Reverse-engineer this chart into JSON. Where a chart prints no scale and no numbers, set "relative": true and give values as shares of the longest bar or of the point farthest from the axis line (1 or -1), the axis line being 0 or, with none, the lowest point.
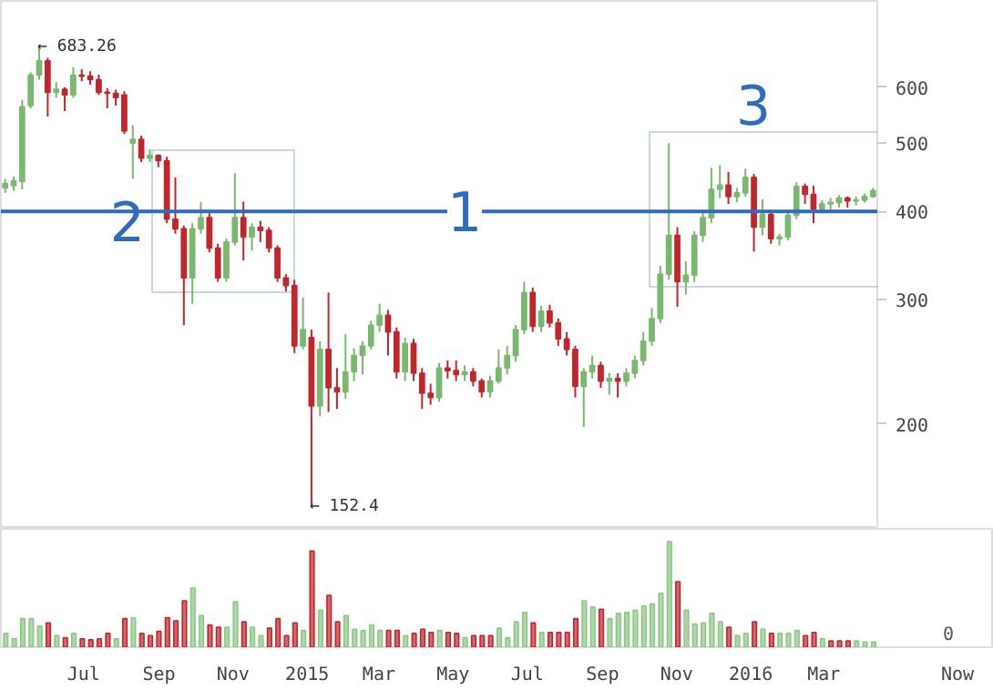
{
  "chart_data": [
    {
      "type": "candlestick",
      "log": "y",
      "tick_labels": "y",
      "categories": [
        null,
        null,
        null,
        null,
        null,
        null,
        null,
        null,
        null,
        null,
        null,
        null,
        null,
        null,
        null,
        null,
        null,
        null,
        null,
        null,
        null,
        null,
        null,
        null,
        null,
        null,
        null,
        null,
        null,
        null,
        null,
        null,
        null,
        null,
        null,
        null,
        null,
        null,
        null,
        null,
        null,
        null,
        null,
        null,
        null,
        null,
        null,
        null,
        null,
        null,
        null,
        null,
        null,
        null,
        null,
        null,
        null,
        null,
        null,
        null,
        null,
        null,
        null,
        null,
        null,
        null,
        null,
        null,
        null,
        null,
        null,
        null,
        null,
        null,
        null,
        null,
        null,
        null,
        null,
        null,
        null,
        null,
        null,
        null,
        null,
        null,
        null,
        null,
        null,
        null,
        null,
        null,
        null,
        null,
        null,
        null,
        null,
        null,
        null,
        null,
        null,
        null,
        null
      ],
      "colors": [
        "#79b86f",
        "#79b86f",
        "#79b86f",
        "#79b86f",
        "#79b86f",
        "#c3252c",
        "#79b86f",
        "#c3252c",
        "#79b86f",
        "#c3252c",
        "#c3252c",
        "#c3252c",
        "#c3252c",
        "#c3252c",
        "#c3252c",
        "#79b86f",
        "#c3252c",
        "#79b86f",
        "#c3252c",
        "#c3252c",
        "#c3252c",
        "#c3252c",
        "#79b86f",
        "#79b86f",
        "#c3252c",
        "#c3252c",
        "#79b86f",
        "#79b86f",
        "#c3252c",
        "#79b86f",
        "#c3252c",
        "#c3252c",
        "#c3252c",
        "#c3252c",
        "#c3252c",
        "#79b86f",
        "#c3252c",
        "#79b86f",
        "#c3252c",
        "#c3252c",
        "#79b86f",
        "#79b86f",
        "#79b86f",
        "#79b86f",
        "#79b86f",
        "#c3252c",
        "#c3252c",
        "#79b86f",
        "#c3252c",
        "#c3252c",
        "#c3252c",
        "#79b86f",
        "#c3252c",
        "#c3252c",
        "#79b86f",
        "#c3252c",
        "#c3252c",
        "#79b86f",
        "#79b86f",
        "#79b86f",
        "#79b86f",
        "#79b86f",
        "#c3252c",
        "#79b86f",
        "#c3252c",
        "#c3252c",
        "#c3252c",
        "#c3252c",
        "#79b86f",
        "#79b86f",
        "#c3252c",
        "#79b86f",
        "#c3252c",
        "#79b86f",
        "#79b86f",
        "#79b86f",
        "#79b86f",
        "#79b86f",
        "#79b86f",
        "#c3252c",
        "#79b86f",
        "#79b86f",
        "#79b86f",
        "#79b86f",
        "#79b86f",
        "#c3252c",
        "#79b86f",
        "#79b86f",
        "#c3252c",
        "#79b86f",
        "#c3252c",
        "#79b86f",
        "#79b86f",
        "#79b86f",
        "#c3252c",
        "#c3252c",
        "#79b86f",
        "#79b86f",
        "#79b86f",
        "#c3252c",
        "#79b86f",
        "#79b86f",
        "#79b86f"
      ],
      "ohlc": [
        [
          432,
          445,
          425,
          438
        ],
        [
          435,
          448,
          428,
          442
        ],
        [
          441,
          575,
          430,
          563
        ],
        [
          565,
          630,
          560,
          624
        ],
        [
          624,
          683.26,
          615,
          654
        ],
        [
          654,
          660,
          545,
          590
        ],
        [
          590,
          610,
          580,
          596
        ],
        [
          596,
          600,
          555,
          585
        ],
        [
          585,
          640,
          580,
          624
        ],
        [
          624,
          636,
          612,
          622
        ],
        [
          622,
          632,
          605,
          615
        ],
        [
          615,
          625,
          585,
          590
        ],
        [
          590,
          598,
          560,
          588
        ],
        [
          588,
          595,
          565,
          580
        ],
        [
          585,
          592,
          515,
          520
        ],
        [
          500,
          530,
          445,
          506
        ],
        [
          506,
          512,
          470,
          476
        ],
        [
          476,
          490,
          470,
          480
        ],
        [
          480,
          482,
          462,
          472
        ],
        [
          472,
          478,
          385,
          390
        ],
        [
          390,
          447,
          372,
          378
        ],
        [
          378,
          382,
          276,
          322
        ],
        [
          322,
          385,
          296,
          378
        ],
        [
          378,
          413,
          372,
          392
        ],
        [
          392,
          398,
          350,
          355
        ],
        [
          355,
          360,
          318,
          322
        ],
        [
          322,
          366,
          318,
          362
        ],
        [
          362,
          453,
          358,
          392
        ],
        [
          392,
          413,
          341,
          368
        ],
        [
          368,
          385,
          352,
          380
        ],
        [
          380,
          388,
          362,
          376
        ],
        [
          376,
          380,
          350,
          355
        ],
        [
          355,
          358,
          318,
          322
        ],
        [
          322,
          326,
          308,
          314
        ],
        [
          314,
          320,
          252,
          258
        ],
        [
          258,
          302,
          255,
          272
        ],
        [
          265,
          272,
          152.4,
          212
        ],
        [
          212,
          262,
          205,
          255
        ],
        [
          255,
          307,
          208,
          225
        ],
        [
          225,
          240,
          210,
          222
        ],
        [
          222,
          268,
          217,
          237
        ],
        [
          237,
          256,
          230,
          250
        ],
        [
          250,
          262,
          235,
          258
        ],
        [
          258,
          280,
          255,
          276
        ],
        [
          276,
          296,
          270,
          285
        ],
        [
          285,
          290,
          250,
          270
        ],
        [
          270,
          274,
          232,
          237
        ],
        [
          237,
          265,
          230,
          260
        ],
        [
          260,
          264,
          230,
          236
        ],
        [
          236,
          240,
          210,
          221
        ],
        [
          221,
          228,
          213,
          218
        ],
        [
          218,
          244,
          215,
          240
        ],
        [
          240,
          246,
          232,
          238
        ],
        [
          238,
          246,
          230,
          235
        ],
        [
          235,
          242,
          230,
          237
        ],
        [
          237,
          240,
          226,
          230
        ],
        [
          230,
          232,
          218,
          222
        ],
        [
          222,
          234,
          218,
          230
        ],
        [
          230,
          255,
          228,
          240
        ],
        [
          240,
          258,
          235,
          250
        ],
        [
          250,
          276,
          245,
          272
        ],
        [
          272,
          318,
          268,
          307
        ],
        [
          307,
          312,
          270,
          275
        ],
        [
          275,
          294,
          270,
          289
        ],
        [
          289,
          295,
          274,
          278
        ],
        [
          278,
          282,
          258,
          264
        ],
        [
          264,
          270,
          250,
          255
        ],
        [
          255,
          258,
          218,
          226
        ],
        [
          226,
          240,
          198,
          237
        ],
        [
          237,
          250,
          232,
          242
        ],
        [
          242,
          245,
          225,
          230
        ],
        [
          230,
          236,
          220,
          232
        ],
        [
          232,
          236,
          218,
          230
        ],
        [
          230,
          240,
          226,
          236
        ],
        [
          236,
          250,
          232,
          246
        ],
        [
          246,
          270,
          242,
          262
        ],
        [
          262,
          292,
          258,
          282
        ],
        [
          282,
          335,
          278,
          326
        ],
        [
          326,
          500,
          320,
          370
        ],
        [
          370,
          380,
          293,
          318
        ],
        [
          318,
          340,
          305,
          325
        ],
        [
          325,
          375,
          318,
          370
        ],
        [
          370,
          400,
          362,
          392
        ],
        [
          392,
          461,
          385,
          430
        ],
        [
          430,
          465,
          418,
          436
        ],
        [
          436,
          455,
          410,
          420
        ],
        [
          420,
          432,
          412,
          425
        ],
        [
          425,
          460,
          420,
          447
        ],
        [
          447,
          452,
          351,
          380
        ],
        [
          380,
          416,
          370,
          396
        ],
        [
          396,
          400,
          360,
          366
        ],
        [
          366,
          372,
          358,
          368
        ],
        [
          368,
          400,
          364,
          395
        ],
        [
          395,
          440,
          390,
          434
        ],
        [
          434,
          438,
          410,
          423
        ],
        [
          423,
          435,
          385,
          403
        ],
        [
          403,
          415,
          398,
          410
        ],
        [
          410,
          418,
          402,
          412
        ],
        [
          412,
          422,
          405,
          418
        ],
        [
          418,
          420,
          405,
          414
        ],
        [
          414,
          420,
          408,
          415
        ],
        [
          415,
          424,
          412,
          420
        ],
        [
          420,
          432,
          418,
          428
        ]
      ],
      "ylim": [
        142,
        795
      ],
      "yticks": [
        200,
        300,
        400,
        500,
        600
      ],
      "ref_lines": [
        {
          "axis": "y",
          "value": 400,
          "color": "#2f6cbf"
        }
      ],
      "annotations": [
        "← 683.26",
        "← 152.4",
        "1",
        "2",
        "3"
      ]
    },
    {
      "type": "bar",
      "relative": true,
      "x": [
        "2014-04-28",
        "2014-05-05",
        "2014-05-12",
        "2014-05-19",
        "2014-05-26",
        "2014-06-02",
        "2014-06-09",
        "2014-06-16",
        "2014-06-23",
        "2014-06-30",
        "2014-07-07",
        "2014-07-14",
        "2014-07-21",
        "2014-07-28",
        "2014-08-04",
        "2014-08-11",
        "2014-08-18",
        "2014-08-25",
        "2014-09-01",
        "2014-09-08",
        "2014-09-15",
        "2014-09-22",
        "2014-09-29",
        "2014-10-06",
        "2014-10-13",
        "2014-10-20",
        "2014-10-27",
        "2014-11-03",
        "2014-11-10",
        "2014-11-17",
        "2014-11-24",
        "2014-12-01",
        "2014-12-08",
        "2014-12-15",
        "2014-12-22",
        "2014-12-29",
        "2015-01-05",
        "2015-01-12",
        "2015-01-19",
        "2015-01-26",
        "2015-02-02",
        "2015-02-09",
        "2015-02-16",
        "2015-02-23",
        "2015-03-02",
        "2015-03-09",
        "2015-03-16",
        "2015-03-23",
        "2015-03-30",
        "2015-04-06",
        "2015-04-13",
        "2015-04-20",
        "2015-04-27",
        "2015-05-04",
        "2015-05-11",
        "2015-05-18",
        "2015-05-25",
        "2015-06-01",
        "2015-06-08",
        "2015-06-15",
        "2015-06-22",
        "2015-06-29",
        "2015-07-06",
        "2015-07-13",
        "2015-07-20",
        "2015-07-27",
        "2015-08-03",
        "2015-08-10",
        "2015-08-17",
        "2015-08-24",
        "2015-08-31",
        "2015-09-07",
        "2015-09-14",
        "2015-09-21",
        "2015-09-28",
        "2015-10-05",
        "2015-10-12",
        "2015-10-19",
        "2015-10-26",
        "2015-11-02",
        "2015-11-09",
        "2015-11-16",
        "2015-11-23",
        "2015-11-30",
        "2015-12-07",
        "2015-12-14",
        "2015-12-21",
        "2015-12-28",
        "2016-01-04",
        "2016-01-11",
        "2016-01-18",
        "2016-01-25",
        "2016-02-01",
        "2016-02-08",
        "2016-02-15",
        "2016-02-22",
        "2016-02-29",
        "2016-03-07",
        "2016-03-14",
        "2016-03-21",
        "2016-03-28",
        "2016-04-04",
        "2016-04-11"
      ],
      "values": [
        0.13,
        0.08,
        0.27,
        0.27,
        0.2,
        0.23,
        0.11,
        0.09,
        0.13,
        0.08,
        0.07,
        0.08,
        0.13,
        0.08,
        0.27,
        0.28,
        0.13,
        0.11,
        0.15,
        0.28,
        0.25,
        0.44,
        0.56,
        0.3,
        0.21,
        0.19,
        0.19,
        0.43,
        0.24,
        0.19,
        0.11,
        0.18,
        0.27,
        0.11,
        0.23,
        0.16,
        0.91,
        0.35,
        0.49,
        0.24,
        0.3,
        0.17,
        0.16,
        0.21,
        0.16,
        0.16,
        0.16,
        0.11,
        0.13,
        0.17,
        0.14,
        0.16,
        0.14,
        0.13,
        0.09,
        0.11,
        0.11,
        0.11,
        0.18,
        0.09,
        0.24,
        0.33,
        0.23,
        0.14,
        0.14,
        0.14,
        0.14,
        0.27,
        0.44,
        0.38,
        0.36,
        0.27,
        0.32,
        0.33,
        0.35,
        0.39,
        0.41,
        0.51,
        1,
        0.62,
        0.35,
        0.22,
        0.23,
        0.32,
        0.24,
        0.19,
        0.11,
        0.13,
        0.24,
        0.17,
        0.13,
        0.13,
        0.13,
        0.16,
        0.11,
        0.14,
        0.08,
        0.06,
        0.06,
        0.06,
        0.06,
        0.05,
        0.05
      ],
      "colors": [
        "#8cc784",
        "#8cc784",
        "#8cc784",
        "#8cc784",
        "#8cc784",
        "#c3252c",
        "#8cc784",
        "#c3252c",
        "#8cc784",
        "#c3252c",
        "#c3252c",
        "#c3252c",
        "#c3252c",
        "#8cc784",
        "#c3252c",
        "#8cc784",
        "#c3252c",
        "#c3252c",
        "#c3252c",
        "#c3252c",
        "#c3252c",
        "#c3252c",
        "#8cc784",
        "#8cc784",
        "#c3252c",
        "#c3252c",
        "#8cc784",
        "#8cc784",
        "#c3252c",
        "#8cc784",
        "#8cc784",
        "#c3252c",
        "#c3252c",
        "#c3252c",
        "#c3252c",
        "#8cc784",
        "#c3252c",
        "#8cc784",
        "#c3252c",
        "#c3252c",
        "#8cc784",
        "#8cc784",
        "#8cc784",
        "#8cc784",
        "#8cc784",
        "#c3252c",
        "#c3252c",
        "#8cc784",
        "#c3252c",
        "#c3252c",
        "#c3252c",
        "#8cc784",
        "#c3252c",
        "#c3252c",
        "#8cc784",
        "#c3252c",
        "#c3252c",
        "#c3252c",
        "#8cc784",
        "#8cc784",
        "#8cc784",
        "#8cc784",
        "#c3252c",
        "#8cc784",
        "#c3252c",
        "#c3252c",
        "#c3252c",
        "#c3252c",
        "#8cc784",
        "#8cc784",
        "#c3252c",
        "#8cc784",
        "#8cc784",
        "#8cc784",
        "#8cc784",
        "#8cc784",
        "#8cc784",
        "#8cc784",
        "#8cc784",
        "#c3252c",
        "#8cc784",
        "#8cc784",
        "#8cc784",
        "#8cc784",
        "#8cc784",
        "#c3252c",
        "#8cc784",
        "#8cc784",
        "#c3252c",
        "#8cc784",
        "#c3252c",
        "#8cc784",
        "#8cc784",
        "#8cc784",
        "#c3252c",
        "#c3252c",
        "#8cc784",
        "#c3252c",
        "#c3252c",
        "#c3252c",
        "#8cc784",
        "#8cc784",
        "#8cc784"
      ],
      "xlim": [
        "2014-04-24",
        "2016-07-19"
      ],
      "xticks": [
        {
          "value": "2014-07-01",
          "label": "Jul"
        },
        {
          "value": "2014-09-01",
          "label": "Sep"
        },
        {
          "value": "2014-11-01",
          "label": "Nov"
        },
        {
          "value": "2015-01-01",
          "label": "2015"
        },
        {
          "value": "2015-03-01",
          "label": "Mar"
        },
        {
          "value": "2015-05-01",
          "label": "May"
        },
        {
          "value": "2015-07-01",
          "label": "Jul"
        },
        {
          "value": "2015-09-01",
          "label": "Sep"
        },
        {
          "value": "2015-11-01",
          "label": "Nov"
        },
        {
          "value": "2016-01-01",
          "label": "2016"
        },
        {
          "value": "2016-03-01",
          "label": "Mar"
        },
        {
          "value": "2016-06-19",
          "label": "Now"
        }
      ],
      "annotations": [
        "0"
      ]
    }
  ]
}
